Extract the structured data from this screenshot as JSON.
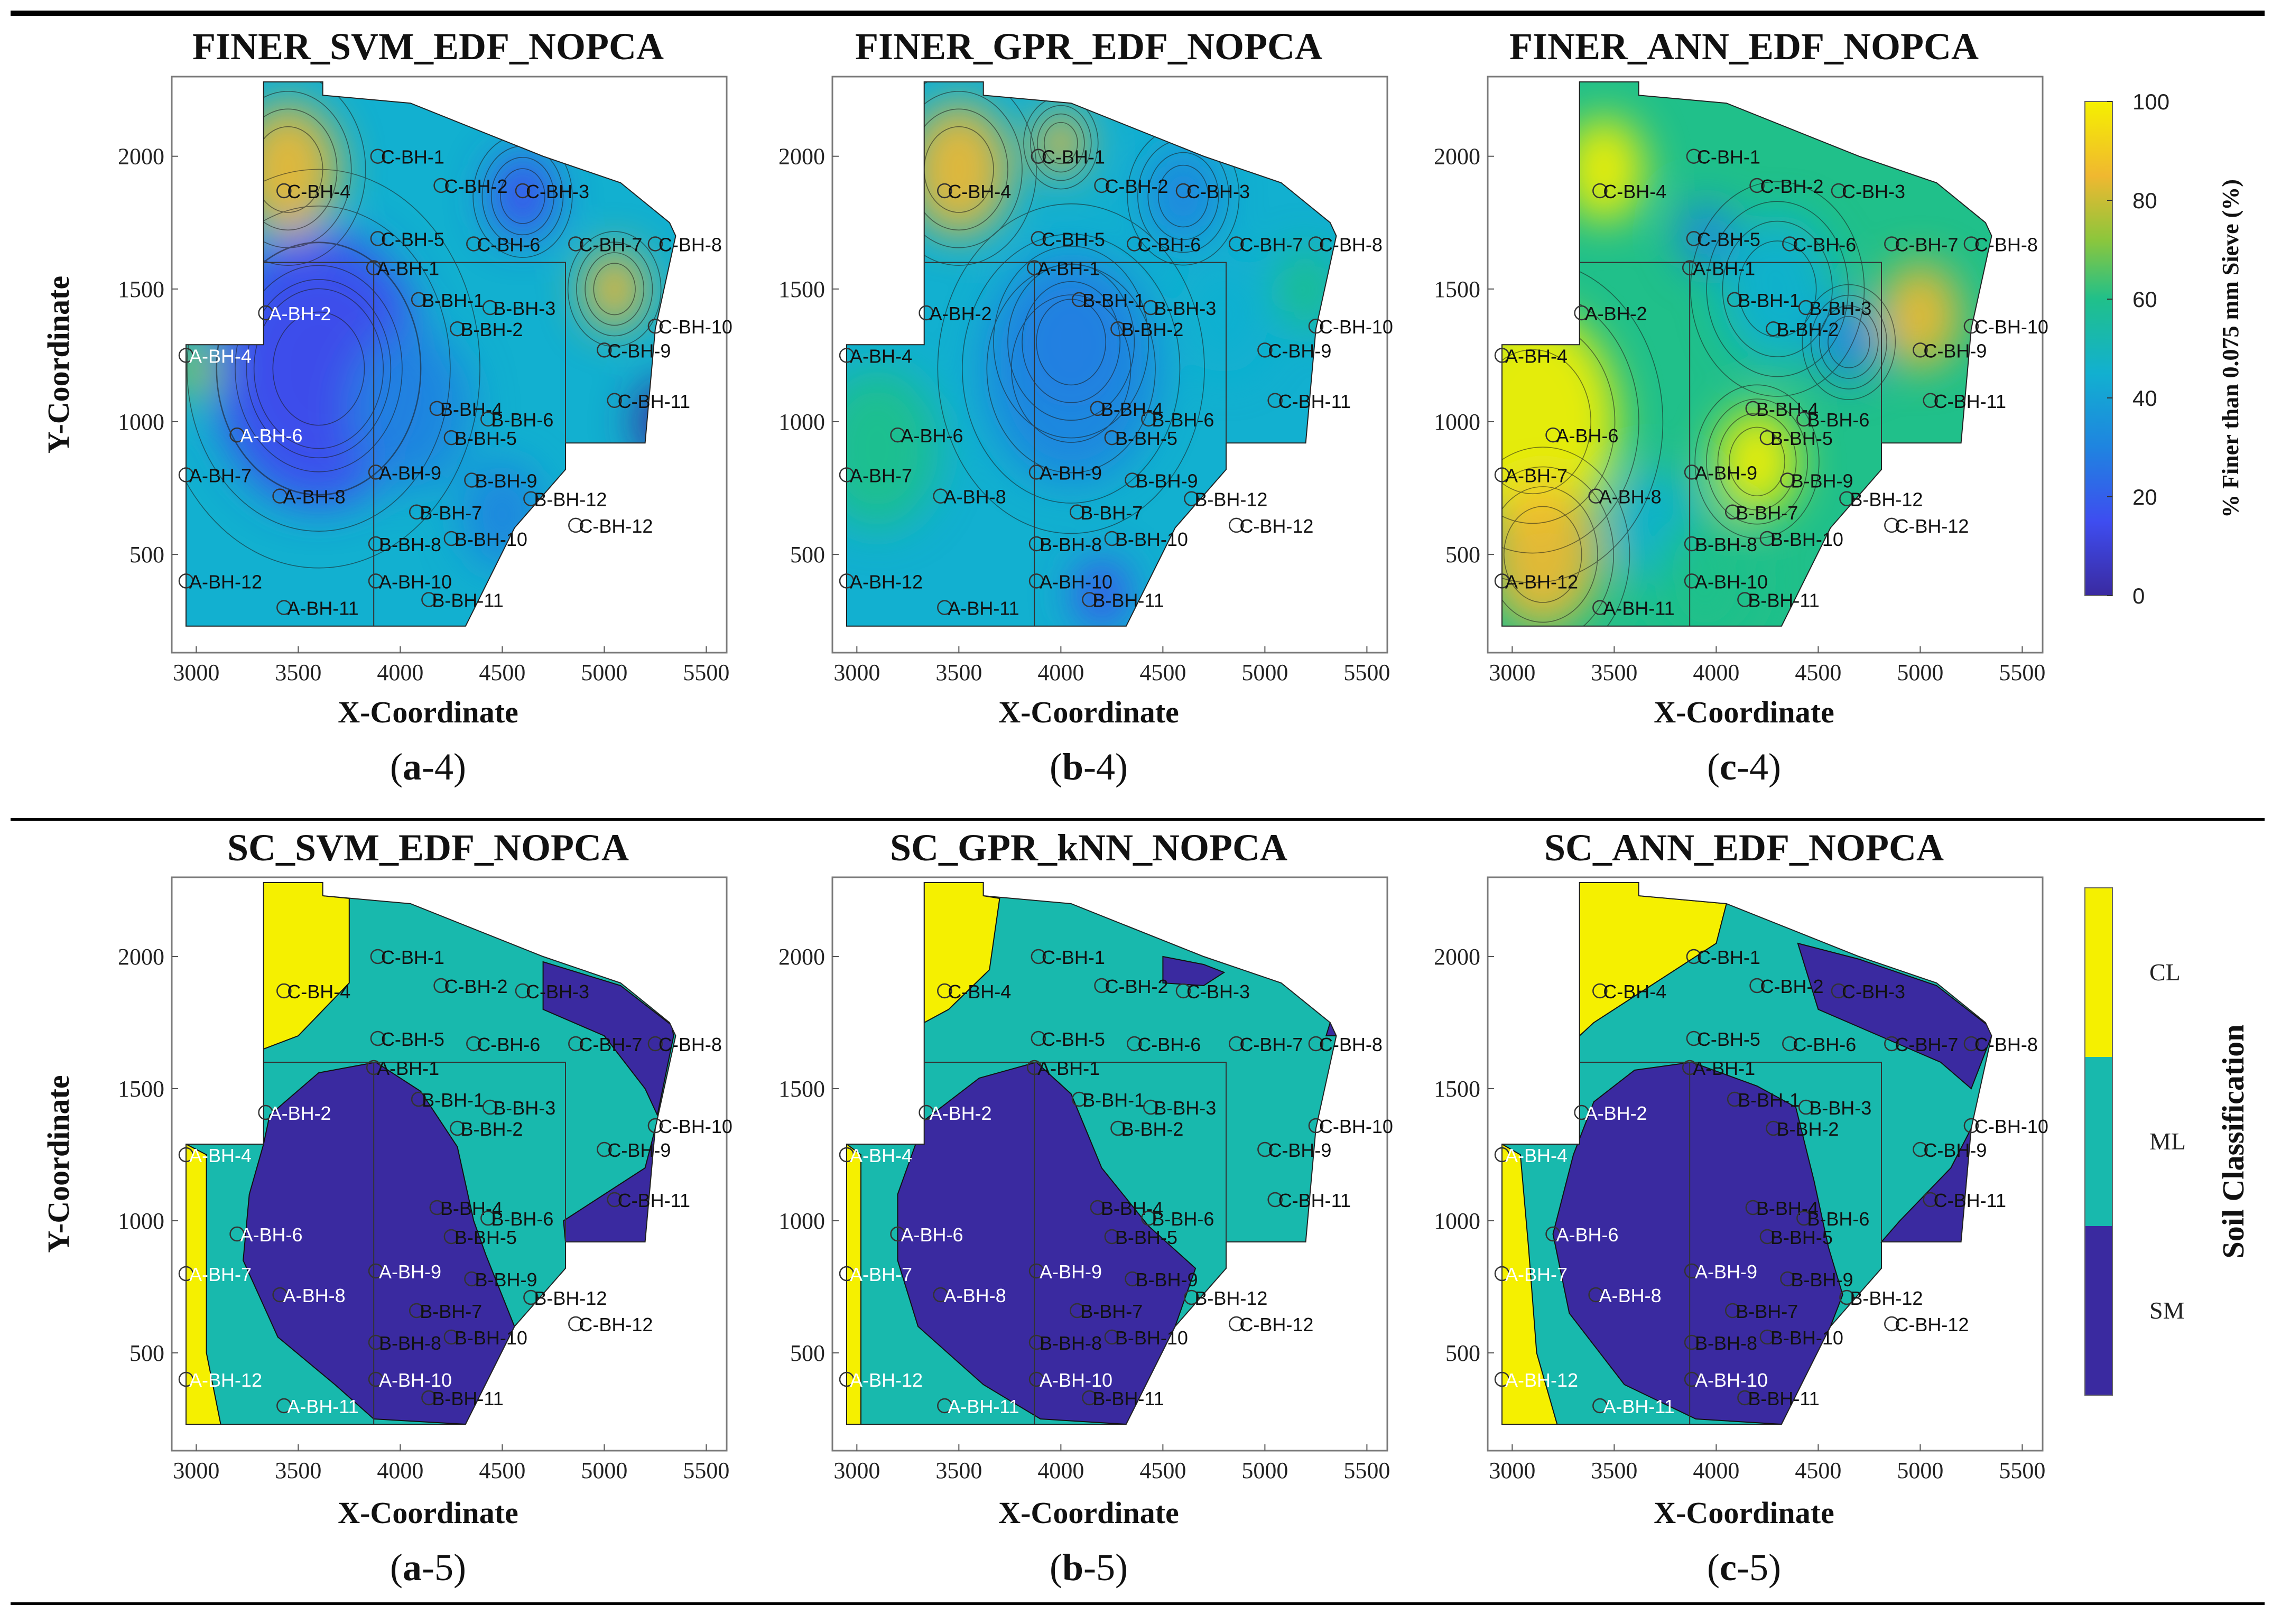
{
  "figure": {
    "top_row": {
      "colorbar": {
        "label": "% Finer than 0.075 mm Sieve (%)",
        "ticks": [
          0,
          20,
          40,
          60,
          80,
          100
        ]
      },
      "panels": [
        {
          "title": "FINER_SVM_EDF_NOPCA",
          "caption_letter": "a",
          "caption_num": "-4"
        },
        {
          "title": "FINER_GPR_EDF_NOPCA",
          "caption_letter": "b",
          "caption_num": "-4"
        },
        {
          "title": "FINER_ANN_EDF_NOPCA",
          "caption_letter": "c",
          "caption_num": "-4"
        }
      ]
    },
    "bottom_row": {
      "colorbar": {
        "label": "Soil Classification",
        "classes": [
          {
            "name": "CL",
            "color": "#f5f000"
          },
          {
            "name": "ML",
            "color": "#18b9ad"
          },
          {
            "name": "SM",
            "color": "#3a2aa0"
          }
        ]
      },
      "panels": [
        {
          "title": "SC_SVM_EDF_NOPCA",
          "caption_letter": "a",
          "caption_num": "-5"
        },
        {
          "title": "SC_GPR_kNN_NOPCA",
          "caption_letter": "b",
          "caption_num": "-5"
        },
        {
          "title": "SC_ANN_EDF_NOPCA",
          "caption_letter": "c",
          "caption_num": "-5"
        }
      ]
    }
  },
  "chart_data": {
    "type": "heatmap",
    "xlabel": "X-Coordinate",
    "ylabel": "Y-Coordinate",
    "xlim": [
      2880,
      5600
    ],
    "ylim": [
      130,
      2300
    ],
    "xticks": [
      3000,
      3500,
      4000,
      4500,
      5000,
      5500
    ],
    "yticks": [
      500,
      1000,
      1500,
      2000
    ],
    "site_boundary": [
      [
        3330,
        2280
      ],
      [
        3620,
        2280
      ],
      [
        3620,
        2230
      ],
      [
        4050,
        2200
      ],
      [
        4700,
        2000
      ],
      [
        5080,
        1900
      ],
      [
        5320,
        1750
      ],
      [
        5350,
        1700
      ],
      [
        5250,
        1350
      ],
      [
        5200,
        920
      ],
      [
        4810,
        920
      ],
      [
        4810,
        820
      ],
      [
        4560,
        600
      ],
      [
        4320,
        230
      ],
      [
        2950,
        230
      ],
      [
        2950,
        1290
      ],
      [
        3330,
        1290
      ]
    ],
    "boreholes": [
      {
        "label": "A-BH-1",
        "x": 3870,
        "y": 1580
      },
      {
        "label": "A-BH-2",
        "x": 3340,
        "y": 1410
      },
      {
        "label": "A-BH-4",
        "x": 2950,
        "y": 1250
      },
      {
        "label": "A-BH-6",
        "x": 3200,
        "y": 950
      },
      {
        "label": "A-BH-7",
        "x": 2950,
        "y": 800
      },
      {
        "label": "A-BH-8",
        "x": 3410,
        "y": 720
      },
      {
        "label": "A-BH-9",
        "x": 3880,
        "y": 810
      },
      {
        "label": "A-BH-10",
        "x": 3880,
        "y": 400
      },
      {
        "label": "A-BH-11",
        "x": 3430,
        "y": 300
      },
      {
        "label": "A-BH-12",
        "x": 2950,
        "y": 400
      },
      {
        "label": "B-BH-1",
        "x": 4090,
        "y": 1460
      },
      {
        "label": "B-BH-2",
        "x": 4280,
        "y": 1350
      },
      {
        "label": "B-BH-3",
        "x": 4440,
        "y": 1430
      },
      {
        "label": "B-BH-4",
        "x": 4180,
        "y": 1050
      },
      {
        "label": "B-BH-5",
        "x": 4250,
        "y": 940
      },
      {
        "label": "B-BH-6",
        "x": 4430,
        "y": 1010
      },
      {
        "label": "B-BH-7",
        "x": 4080,
        "y": 660
      },
      {
        "label": "B-BH-8",
        "x": 3880,
        "y": 540
      },
      {
        "label": "B-BH-9",
        "x": 4350,
        "y": 780
      },
      {
        "label": "B-BH-10",
        "x": 4250,
        "y": 560
      },
      {
        "label": "B-BH-11",
        "x": 4140,
        "y": 330
      },
      {
        "label": "B-BH-12",
        "x": 4640,
        "y": 710
      },
      {
        "label": "C-BH-1",
        "x": 3890,
        "y": 2000
      },
      {
        "label": "C-BH-2",
        "x": 4200,
        "y": 1890
      },
      {
        "label": "C-BH-3",
        "x": 4600,
        "y": 1870
      },
      {
        "label": "C-BH-4",
        "x": 3430,
        "y": 1870
      },
      {
        "label": "C-BH-5",
        "x": 3890,
        "y": 1690
      },
      {
        "label": "C-BH-6",
        "x": 4360,
        "y": 1670
      },
      {
        "label": "C-BH-7",
        "x": 4860,
        "y": 1670
      },
      {
        "label": "C-BH-8",
        "x": 5250,
        "y": 1670
      },
      {
        "label": "C-BH-9",
        "x": 5000,
        "y": 1270
      },
      {
        "label": "C-BH-10",
        "x": 5250,
        "y": 1360
      },
      {
        "label": "C-BH-11",
        "x": 5050,
        "y": 1080
      },
      {
        "label": "C-BH-12",
        "x": 4860,
        "y": 610
      }
    ],
    "top_row_value_range": [
      0,
      100
    ],
    "bottom_row_classes": [
      "SM",
      "ML",
      "CL"
    ]
  }
}
